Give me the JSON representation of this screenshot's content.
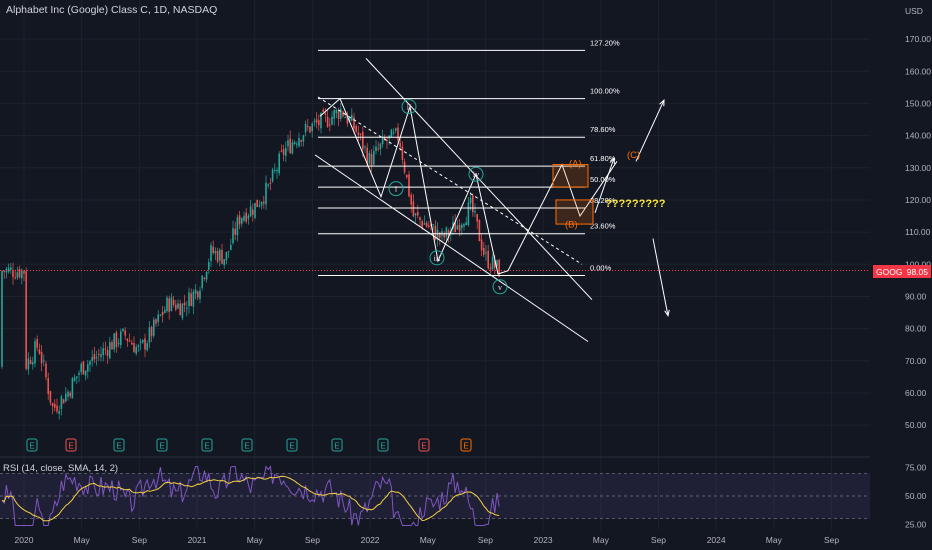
{
  "header": {
    "title": "Alphabet Inc (Google) Class C, 1D, NASDAQ",
    "currency": "USD",
    "rsi_label": "RSI (14, close, SMA, 14, 2)"
  },
  "price_tag": {
    "symbol": "GOOG",
    "price": "98.05"
  },
  "colors": {
    "background": "#131722",
    "up": "#26a69a",
    "down": "#ef5350",
    "rsi_line": "#7e57c2",
    "rsi_sma": "#f5d142",
    "annotation": "#ffffff",
    "wave": "#26a69a",
    "orange": "#ff6d00",
    "price_line": "#f23645"
  },
  "chart_data": {
    "type": "candlestick",
    "title": "Alphabet Inc (Google) Class C, 1D, NASDAQ",
    "y_axis": {
      "ticks": [
        50,
        60,
        70,
        80,
        90,
        100,
        110,
        120,
        130,
        140,
        150,
        160,
        170
      ],
      "range": [
        46,
        175
      ],
      "unit": "USD"
    },
    "x_axis": {
      "ticks": [
        "2020",
        "May",
        "Sep",
        "2021",
        "May",
        "Sep",
        "2022",
        "May",
        "Sep",
        "2023",
        "May",
        "Sep",
        "2024",
        "May",
        "Sep"
      ]
    },
    "price_path": [
      [
        "2020-01",
        68
      ],
      [
        "2020-02",
        75
      ],
      [
        "2020-03",
        55
      ],
      [
        "2020-04",
        60
      ],
      [
        "2020-05",
        68
      ],
      [
        "2020-06",
        71
      ],
      [
        "2020-07",
        75
      ],
      [
        "2020-08",
        78
      ],
      [
        "2020-09",
        73
      ],
      [
        "2020-10",
        80
      ],
      [
        "2020-11",
        88
      ],
      [
        "2020-12",
        87
      ],
      [
        "2021-01",
        92
      ],
      [
        "2021-02",
        104
      ],
      [
        "2021-03",
        102
      ],
      [
        "2021-04",
        115
      ],
      [
        "2021-05",
        118
      ],
      [
        "2021-06",
        124
      ],
      [
        "2021-07",
        135
      ],
      [
        "2021-08",
        140
      ],
      [
        "2021-09",
        143
      ],
      [
        "2021-10",
        145
      ],
      [
        "2021-11",
        148
      ],
      [
        "2021-12",
        142
      ],
      [
        "2022-01",
        132
      ],
      [
        "2022-02",
        138
      ],
      [
        "2022-03",
        140
      ],
      [
        "2022-04",
        115
      ],
      [
        "2022-05",
        112
      ],
      [
        "2022-06",
        108
      ],
      [
        "2022-07",
        112
      ],
      [
        "2022-08",
        118
      ],
      [
        "2022-09",
        102
      ],
      [
        "2022-10",
        98
      ]
    ],
    "fibonacci": [
      {
        "label": "127.20%",
        "price": 166.5
      },
      {
        "label": "100.00%",
        "price": 151.5
      },
      {
        "label": "78.60%",
        "price": 139.5
      },
      {
        "label": "61.80%",
        "price": 130.5
      },
      {
        "label": "50.00%",
        "price": 124
      },
      {
        "label": "38.20%",
        "price": 117.5
      },
      {
        "label": "23.60%",
        "price": 109.5
      },
      {
        "label": "0.00%",
        "price": 96.5
      }
    ],
    "wave_labels": [
      "i",
      "ii",
      "iii",
      "iv",
      "v"
    ],
    "corrective_labels": [
      "(A)",
      "(B)",
      "(C)"
    ],
    "annotation_text": "?????????",
    "event_markers": [
      "E",
      "E",
      "E",
      "E",
      "E",
      "E",
      "E",
      "E",
      "E",
      "E",
      "E"
    ],
    "rsi": {
      "ticks": [
        25.0,
        50.0,
        75.0
      ],
      "tick_labels": [
        "25.00",
        "50.00",
        "75.00"
      ],
      "levels": {
        "upper": 70,
        "middle": 50,
        "lower": 30
      },
      "range": [
        20,
        80
      ]
    }
  }
}
